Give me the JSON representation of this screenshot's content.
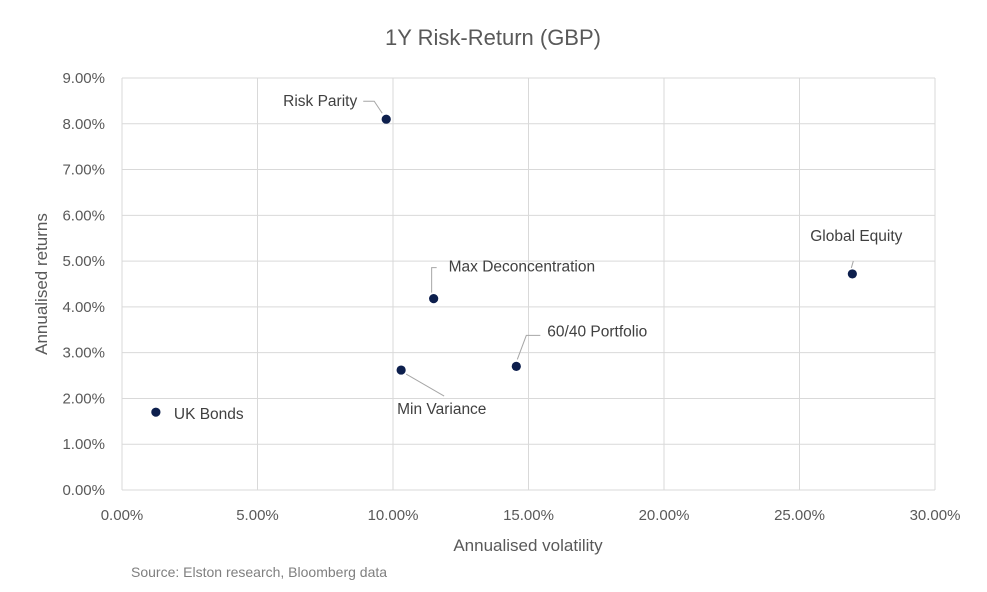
{
  "chart_data": {
    "type": "scatter",
    "title": "1Y Risk-Return (GBP)",
    "xlabel": "Annualised volatility",
    "ylabel": "Annualised returns",
    "xlim": [
      0,
      30
    ],
    "ylim": [
      0,
      9
    ],
    "x_ticks": [
      "0.00%",
      "5.00%",
      "10.00%",
      "15.00%",
      "20.00%",
      "25.00%",
      "30.00%"
    ],
    "y_ticks": [
      "0.00%",
      "1.00%",
      "2.00%",
      "3.00%",
      "4.00%",
      "5.00%",
      "6.00%",
      "7.00%",
      "8.00%",
      "9.00%"
    ],
    "grid": true,
    "marker_color": "#0d1f4d",
    "points": [
      {
        "label": "Risk Parity",
        "x": 9.75,
        "y": 8.1
      },
      {
        "label": "Max Deconcentration",
        "x": 11.5,
        "y": 4.18
      },
      {
        "label": "Min Variance",
        "x": 10.3,
        "y": 2.62
      },
      {
        "label": "60/40 Portfolio",
        "x": 14.55,
        "y": 2.7
      },
      {
        "label": "UK Bonds",
        "x": 1.25,
        "y": 1.7
      },
      {
        "label": "Global Equity",
        "x": 26.95,
        "y": 4.72
      }
    ]
  },
  "footer": {
    "source": "Source: Elston research, Bloomberg data"
  }
}
